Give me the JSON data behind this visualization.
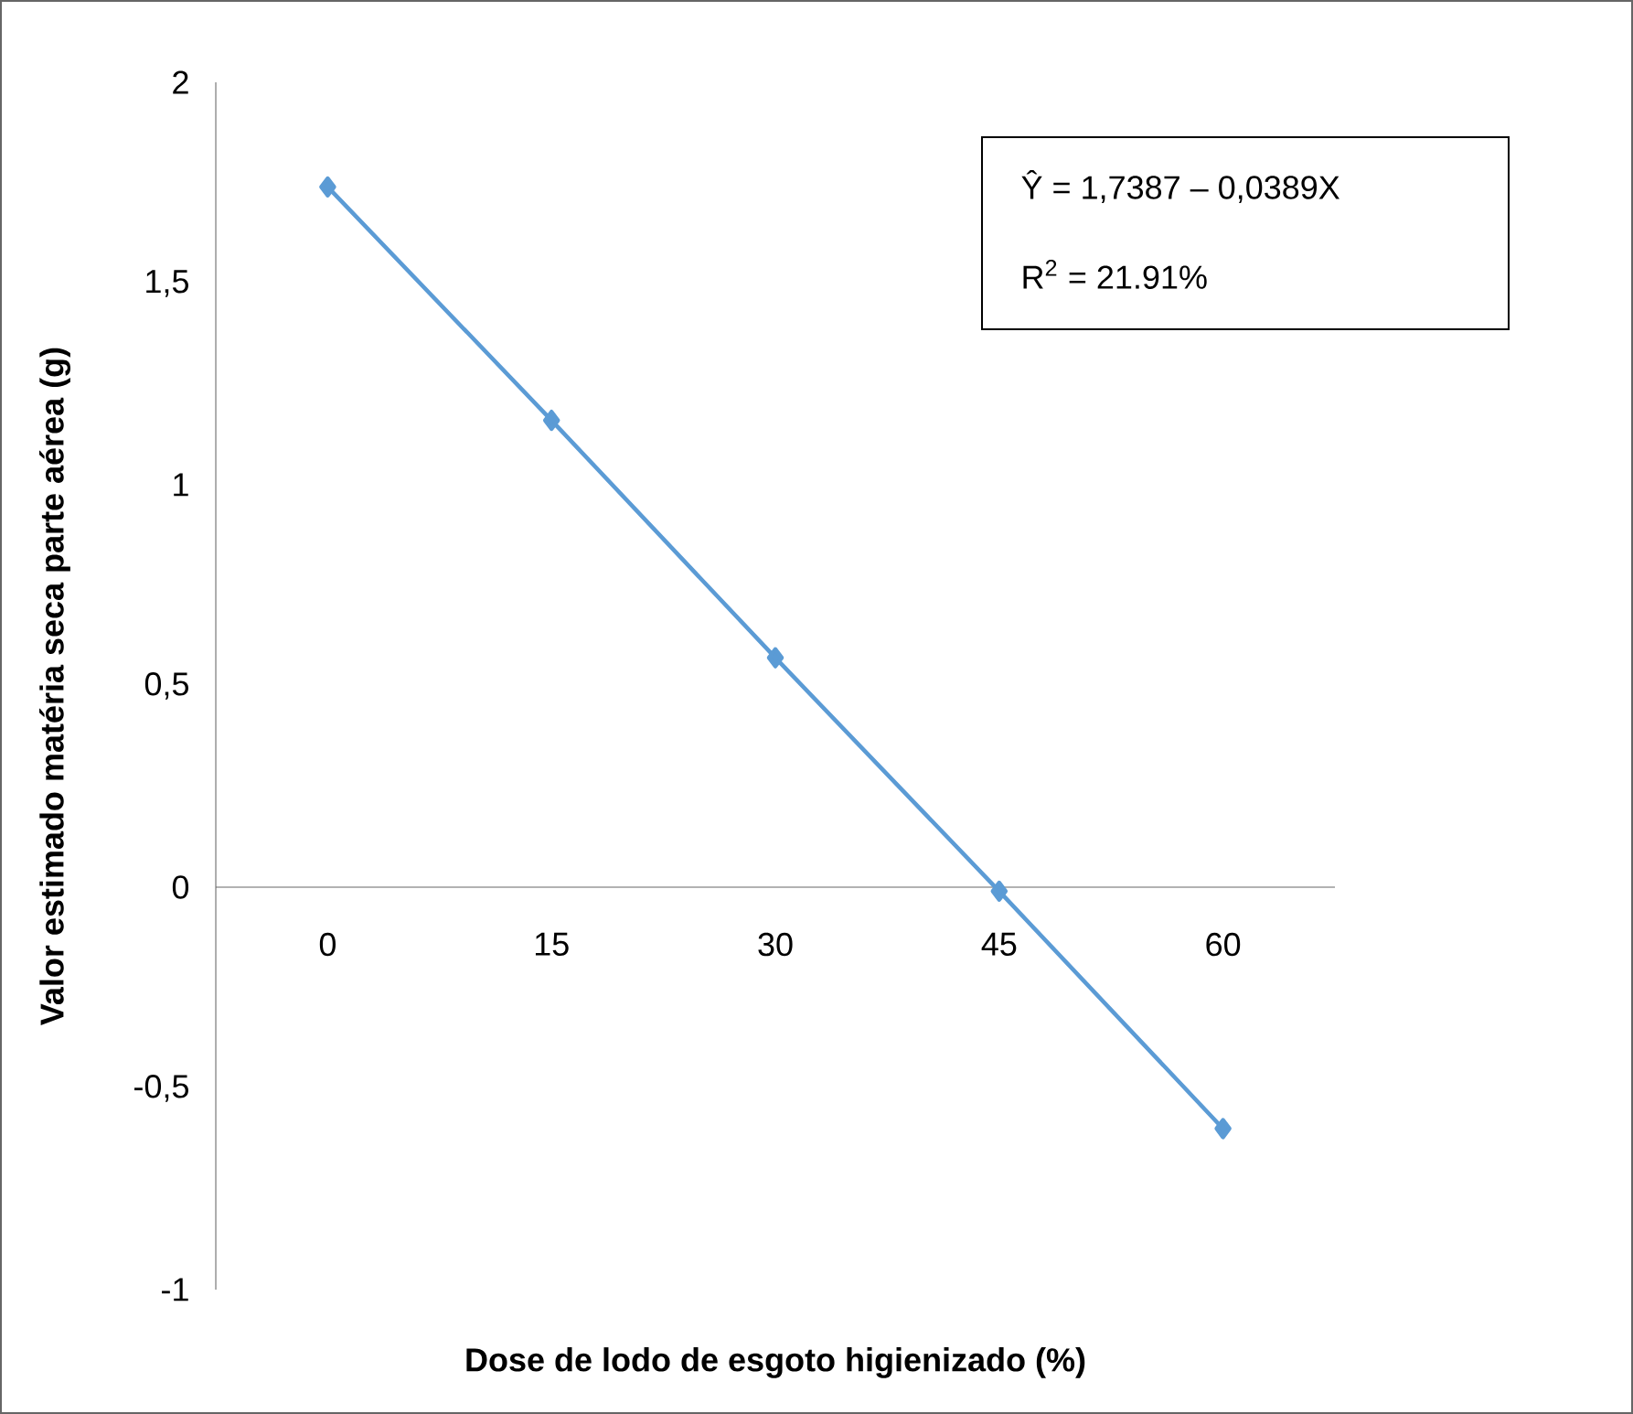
{
  "chart_data": {
    "type": "line",
    "xlabel": "Dose de lodo de esgoto higienizado (%)",
    "ylabel": "Valor estimado matéria seca parte aérea (g)",
    "categories": [
      "0",
      "15",
      "30",
      "45",
      "60"
    ],
    "values": [
      1.74,
      1.16,
      0.57,
      -0.01,
      -0.6
    ],
    "color": "#5b9bd5",
    "marker": "diamond",
    "ylim": [
      -1,
      2
    ],
    "yticks": [
      -1,
      {
        "value": -0.5,
        "label": "-0,5"
      },
      0,
      {
        "value": 0.5,
        "label": "0,5"
      },
      1,
      {
        "value": 1.5,
        "label": "1,5"
      },
      2
    ],
    "annotations": [
      "Ŷ = 1,7387 – 0,0389X",
      "R$^{2}$ = 21.91%"
    ]
  }
}
